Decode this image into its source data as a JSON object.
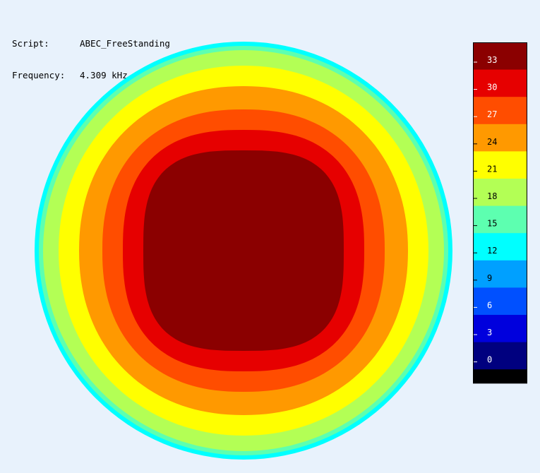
{
  "header": {
    "script_label": "Script:",
    "script_value": "ABEC_FreeStanding",
    "frequency_label": "Frequency:",
    "frequency_value": "4.309 kHz"
  },
  "chart_data": {
    "type": "heatmap",
    "title": "",
    "xlabel": "",
    "ylabel": "",
    "grid": false,
    "legend": "right",
    "colorbar": {
      "ticks": [
        33,
        30,
        27,
        24,
        21,
        18,
        15,
        12,
        9,
        6,
        3,
        0
      ],
      "colors": [
        "#8b0000",
        "#e60000",
        "#ff4d00",
        "#ff9900",
        "#ffff00",
        "#b3ff55",
        "#5dffb0",
        "#00ffff",
        "#00a0ff",
        "#0050ff",
        "#0000dd",
        "#00007f"
      ],
      "bottom_color": "#000000",
      "label_colors": [
        "#ffffff",
        "#ffffff",
        "#ffffff",
        "#000000",
        "#000000",
        "#000000",
        "#000000",
        "#000000",
        "#000000",
        "#ffffff",
        "#ffffff",
        "#ffffff"
      ]
    },
    "contour_levels": [
      {
        "level": 15,
        "color": "#5dffb0"
      },
      {
        "level": 18,
        "color": "#b3ff55"
      },
      {
        "level": 21,
        "color": "#ffff00"
      },
      {
        "level": 24,
        "color": "#ff9900"
      },
      {
        "level": 27,
        "color": "#ff4d00"
      },
      {
        "level": 30,
        "color": "#e60000"
      },
      {
        "level": 33,
        "color": "#8b0000"
      }
    ],
    "outer_edge_color": "#00ffff"
  }
}
